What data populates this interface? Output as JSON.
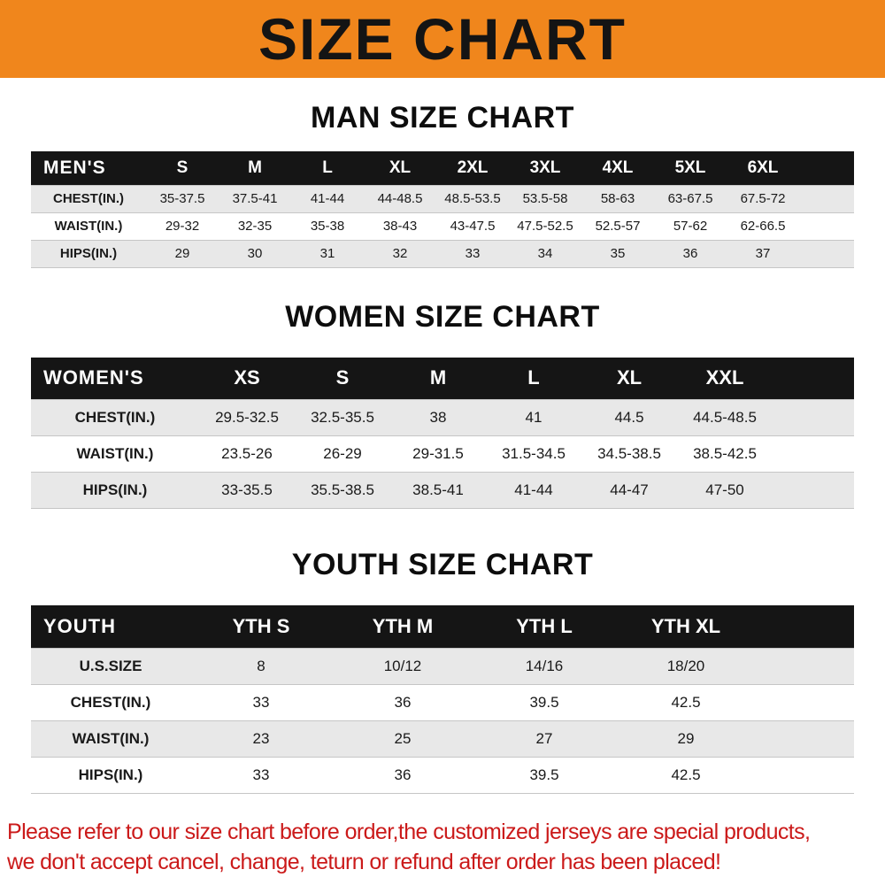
{
  "banner": {
    "title": "SIZE CHART"
  },
  "sections": [
    {
      "id": "men",
      "heading": "MAN SIZE CHART",
      "table": {
        "header": [
          "MEN'S",
          "S",
          "M",
          "L",
          "XL",
          "2XL",
          "3XL",
          "4XL",
          "5XL",
          "6XL"
        ],
        "rows": [
          [
            "CHEST(IN.)",
            "35-37.5",
            "37.5-41",
            "41-44",
            "44-48.5",
            "48.5-53.5",
            "53.5-58",
            "58-63",
            "63-67.5",
            "67.5-72"
          ],
          [
            "WAIST(IN.)",
            "29-32",
            "32-35",
            "35-38",
            "38-43",
            "43-47.5",
            "47.5-52.5",
            "52.5-57",
            "57-62",
            "62-66.5"
          ],
          [
            "HIPS(IN.)",
            "29",
            "30",
            "31",
            "32",
            "33",
            "34",
            "35",
            "36",
            "37"
          ]
        ]
      }
    },
    {
      "id": "women",
      "heading": "WOMEN SIZE CHART",
      "table": {
        "header": [
          "WOMEN'S",
          "XS",
          "S",
          "M",
          "L",
          "XL",
          "XXL"
        ],
        "rows": [
          [
            "CHEST(IN.)",
            "29.5-32.5",
            "32.5-35.5",
            "38",
            "41",
            "44.5",
            "44.5-48.5"
          ],
          [
            "WAIST(IN.)",
            "23.5-26",
            "26-29",
            "29-31.5",
            "31.5-34.5",
            "34.5-38.5",
            "38.5-42.5"
          ],
          [
            "HIPS(IN.)",
            "33-35.5",
            "35.5-38.5",
            "38.5-41",
            "41-44",
            "44-47",
            "47-50"
          ]
        ]
      }
    },
    {
      "id": "youth",
      "heading": "YOUTH SIZE CHART",
      "table": {
        "header": [
          "YOUTH",
          "YTH S",
          "YTH M",
          "YTH L",
          "YTH XL"
        ],
        "rows": [
          [
            "U.S.SIZE",
            "8",
            "10/12",
            "14/16",
            "18/20"
          ],
          [
            "CHEST(IN.)",
            "33",
            "36",
            "39.5",
            "42.5"
          ],
          [
            "WAIST(IN.)",
            "23",
            "25",
            "27",
            "29"
          ],
          [
            "HIPS(IN.)",
            "33",
            "36",
            "39.5",
            "42.5"
          ]
        ]
      }
    }
  ],
  "footer": {
    "line1": "Please refer to our size chart before order,the customized jerseys are special products,",
    "line2": "we don't accept cancel, change, teturn or refund after order has been placed!"
  },
  "colors": {
    "banner_bg": "#f0861c",
    "header_bg": "#151515",
    "row_alt": "#e8e8e8",
    "footer_text": "#cb1a1a"
  }
}
